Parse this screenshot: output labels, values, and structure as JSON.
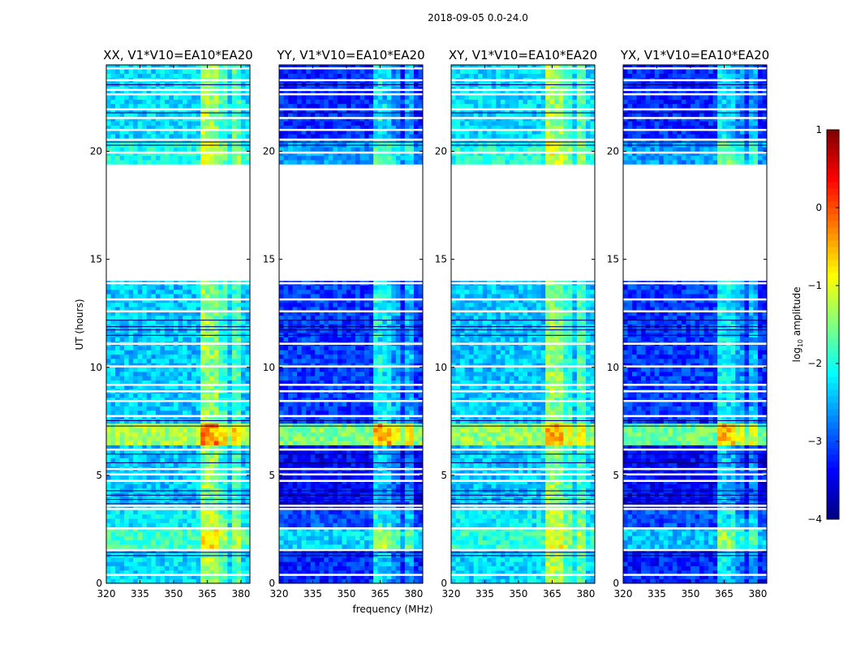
{
  "chart_data": {
    "type": "heatmap",
    "title": "2018-09-05 0.0-24.0",
    "xlabel": "frequency (MHz)",
    "ylabel": "UT (hours)",
    "xlim": [
      320,
      384
    ],
    "ylim": [
      0,
      24
    ],
    "xticks": [
      320,
      335,
      350,
      365,
      380
    ],
    "yticks": [
      0,
      5,
      10,
      15,
      20
    ],
    "colorbar": {
      "label": "log10 amplitude",
      "label_base": "log",
      "label_sub": "10",
      "label_rest": " amplitude",
      "range": [
        -4,
        1
      ],
      "ticks": [
        1,
        0,
        -1,
        -2,
        -3,
        -4
      ],
      "colormap": "jet"
    },
    "no_data_hours": [
      [
        14.05,
        19.5
      ]
    ],
    "flagged_white_lines_hours": [
      0.4,
      1.55,
      2.55,
      3.45,
      3.6,
      4.75,
      5.05,
      5.3,
      6.2,
      7.75,
      8.45,
      8.9,
      9.2,
      10.05,
      11.1,
      12.6,
      13.15,
      13.9,
      19.95,
      20.55,
      21.0,
      21.55,
      21.95,
      22.65,
      22.85,
      23.3,
      23.85
    ],
    "dark_lines_hours": [
      1.3,
      1.45,
      3.7,
      3.9,
      4.1,
      4.3,
      5.6,
      6.0,
      7.3,
      7.55,
      11.5,
      11.75,
      11.9,
      12.2,
      20.3,
      20.45,
      21.8,
      23.1
    ],
    "rfi_bands_mhz": [
      {
        "range": [
          362.5,
          366.5
        ],
        "boost": 1.0
      },
      {
        "range": [
          367,
          370
        ],
        "boost": 0.9
      },
      {
        "range": [
          371,
          374
        ],
        "boost": 0.5
      },
      {
        "range": [
          376,
          379
        ],
        "boost": 0.6
      }
    ],
    "panels": [
      {
        "title": "XX, V1*V10=EA10*EA20",
        "segments": [
          [
            0,
            1.7,
            -2.3
          ],
          [
            1.7,
            2.6,
            -1.8
          ],
          [
            2.6,
            3.5,
            -2.2
          ],
          [
            3.5,
            6.5,
            -2.4
          ],
          [
            6.5,
            7.3,
            -1.3
          ],
          [
            7.3,
            14.05,
            -2.4
          ],
          [
            19.5,
            20.6,
            -2.0
          ],
          [
            20.6,
            24,
            -2.3
          ]
        ]
      },
      {
        "title": "YY, V1*V10=EA10*EA20",
        "segments": [
          [
            0,
            1.7,
            -3.2
          ],
          [
            1.7,
            2.6,
            -2.3
          ],
          [
            2.6,
            3.5,
            -3.0
          ],
          [
            3.5,
            6.5,
            -3.4
          ],
          [
            6.5,
            7.3,
            -1.5
          ],
          [
            7.3,
            14.05,
            -3.1
          ],
          [
            19.5,
            20.6,
            -2.6
          ],
          [
            20.6,
            24,
            -3.2
          ]
        ]
      },
      {
        "title": "XY, V1*V10=EA10*EA20",
        "segments": [
          [
            0,
            1.7,
            -2.3
          ],
          [
            1.7,
            2.6,
            -1.9
          ],
          [
            2.6,
            3.5,
            -2.2
          ],
          [
            3.5,
            6.5,
            -2.4
          ],
          [
            6.5,
            7.3,
            -1.4
          ],
          [
            7.3,
            14.05,
            -2.4
          ],
          [
            19.5,
            20.6,
            -2.0
          ],
          [
            20.6,
            24,
            -2.3
          ]
        ]
      },
      {
        "title": "YX, V1*V10=EA10*EA20",
        "segments": [
          [
            0,
            1.7,
            -3.2
          ],
          [
            1.7,
            2.6,
            -2.4
          ],
          [
            2.6,
            3.5,
            -3.0
          ],
          [
            3.5,
            6.5,
            -3.4
          ],
          [
            6.5,
            7.3,
            -1.6
          ],
          [
            7.3,
            14.05,
            -3.1
          ],
          [
            19.5,
            20.6,
            -2.6
          ],
          [
            20.6,
            24,
            -3.2
          ]
        ]
      }
    ]
  }
}
